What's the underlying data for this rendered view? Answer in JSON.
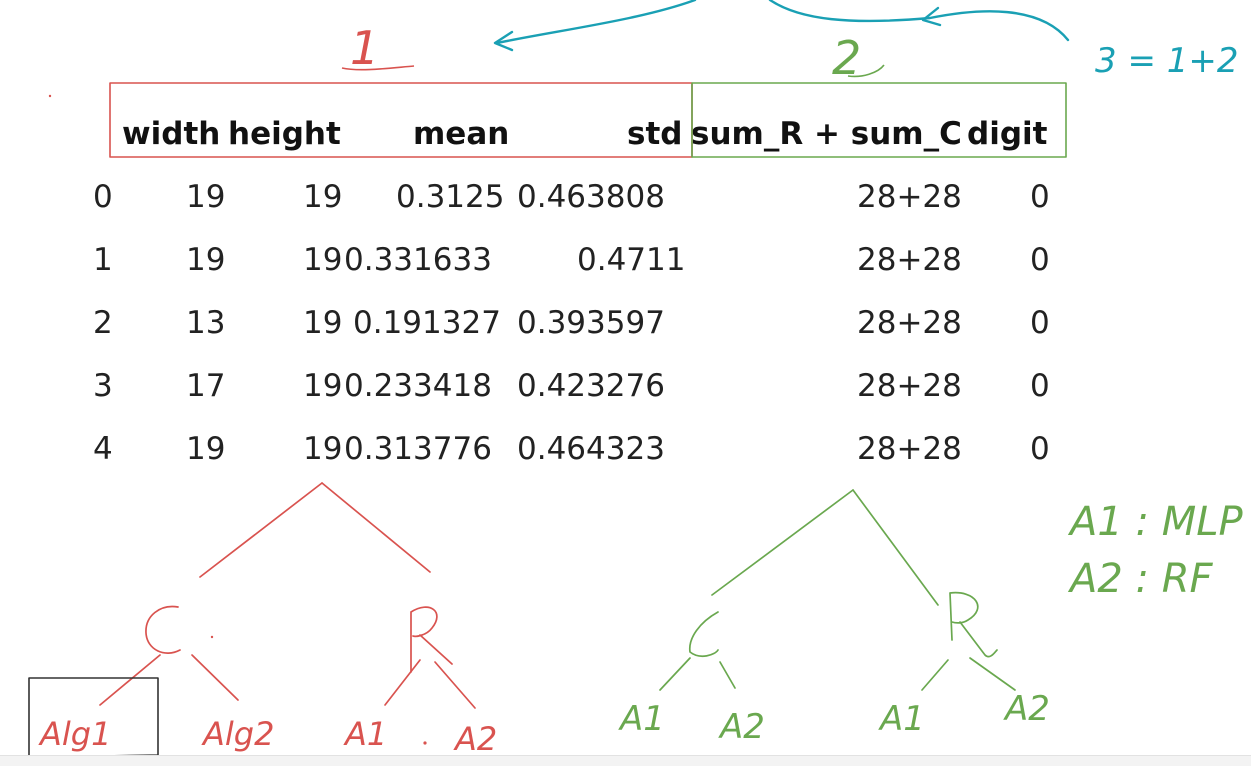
{
  "annotations": {
    "group1_label": "1",
    "group2_label": "2",
    "sum_note": "3 = 1+2",
    "legend_a1": "A1 : MLP",
    "legend_a2": "A2 : RF",
    "tree1": {
      "left_node": "C",
      "right_node": "R",
      "leaves": [
        "Alg1",
        "Alg2",
        "A1",
        "A2"
      ]
    },
    "tree2": {
      "left_node": "C",
      "right_node": "R",
      "leaves": [
        "A1",
        "A2",
        "A1",
        "A2"
      ]
    },
    "colors": {
      "red": "#d9534f",
      "green": "#6aa84f",
      "teal": "#1aa0b4"
    }
  },
  "table": {
    "columns": [
      "width",
      "height",
      "mean",
      "std",
      "sum_R + sum_C",
      "digit"
    ],
    "rows": [
      {
        "index": "0",
        "cells": [
          "19",
          "19",
          "0.3125",
          "0.463808",
          "28+28",
          "0"
        ]
      },
      {
        "index": "1",
        "cells": [
          "19",
          "19",
          "0.331633",
          "0.4711",
          "28+28",
          "0"
        ]
      },
      {
        "index": "2",
        "cells": [
          "13",
          "19",
          "0.191327",
          "0.393597",
          "28+28",
          "0"
        ]
      },
      {
        "index": "3",
        "cells": [
          "17",
          "19",
          "0.233418",
          "0.423276",
          "28+28",
          "0"
        ]
      },
      {
        "index": "4",
        "cells": [
          "19",
          "19",
          "0.313776",
          "0.464323",
          "28+28",
          "0"
        ]
      }
    ]
  }
}
